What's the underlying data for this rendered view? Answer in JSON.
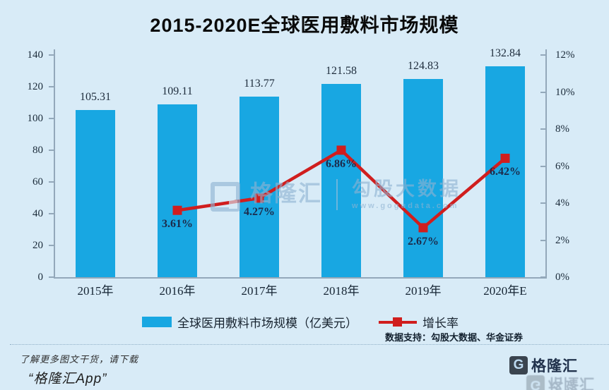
{
  "title": "2015-2020E全球医用敷料市场规模",
  "chart_data": {
    "type": "bar+line",
    "title": "2015-2020E全球医用敷料市场规模",
    "categories": [
      "2015年",
      "2016年",
      "2017年",
      "2018年",
      "2019年",
      "2020年E"
    ],
    "series": [
      {
        "name": "全球医用敷料市场规模（亿美元）",
        "type": "bar",
        "axis": "left",
        "color": "#18a7e2",
        "values": [
          105.31,
          109.11,
          113.77,
          121.58,
          124.83,
          132.84
        ]
      },
      {
        "name": "增长率",
        "type": "line",
        "axis": "right",
        "color": "#d01e1e",
        "values": [
          null,
          3.61,
          4.27,
          6.86,
          2.67,
          6.42
        ],
        "label_suffix": "%"
      }
    ],
    "left_axis": {
      "min": 0,
      "max": 140,
      "step": 20,
      "tick_labels": [
        "0",
        "20",
        "40",
        "60",
        "80",
        "100",
        "120",
        "140"
      ]
    },
    "right_axis": {
      "min": 0,
      "max": 12,
      "step": 2,
      "tick_labels": [
        "0%",
        "2%",
        "4%",
        "6%",
        "8%",
        "10%",
        "12%"
      ]
    },
    "grid": false,
    "legend_position": "bottom"
  },
  "legend": [
    {
      "label": "全球医用敷料市场规模（亿美元）",
      "marker": "bar-swatch",
      "color": "#18a7e2"
    },
    {
      "label": "增长率",
      "marker": "line-square",
      "color": "#d01e1e"
    }
  ],
  "watermark": {
    "brand": "格隆汇",
    "big_text": "勾股大数据",
    "url": "www.gogudata.com"
  },
  "footer": {
    "data_support": "数据支持：勾股大数据、华金证券",
    "promo_line1": "了解更多图文干货，请下载",
    "promo_line2": "“格隆汇App”",
    "brand_name": "格隆汇",
    "brand_logo_letter": "G"
  },
  "colors": {
    "background": "#d8ebf7",
    "bar": "#18a7e2",
    "line": "#d01e1e",
    "axis": "#93a8ba",
    "bar_value_label": "#1e2c3c",
    "pct_value_label": "#1c2a4a",
    "title": "#0a0a0a"
  }
}
